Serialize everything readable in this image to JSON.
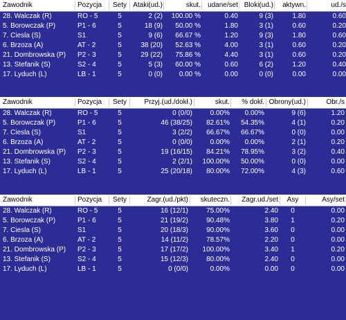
{
  "table1": {
    "headers": [
      "Zawodnik",
      "Pozycja",
      "Sety",
      "Ataki(ud.)",
      "skut.",
      "udane/set",
      "Bloki(ud.)",
      "aktywn.",
      "ud./s"
    ],
    "rows": [
      [
        "28. Walczak (R)",
        "RO - 5",
        "5",
        "2 (2)",
        "100.00 %",
        "0.40",
        "9 (3)",
        "1.80",
        "0.60"
      ],
      [
        "5. Borowczak (P)",
        "P1 - 6",
        "5",
        "18 (9)",
        "50.00 %",
        "1.80",
        "3 (1)",
        "0.60",
        "0.20"
      ],
      [
        "7. Ciesla (S)",
        "S1",
        "5",
        "9 (6)",
        "66.67 %",
        "1.20",
        "9 (3)",
        "1.80",
        "0.60"
      ],
      [
        "6. Brzoza (A)",
        "AT - 2",
        "5",
        "38 (20)",
        "52.63 %",
        "4.00",
        "3 (1)",
        "0.60",
        "0.20"
      ],
      [
        "21. Dombrowska (P)",
        "P2 - 3",
        "5",
        "29 (22)",
        "75.86 %",
        "4.40",
        "3 (1)",
        "0.60",
        "0.20"
      ],
      [
        "13. Stefanik (S)",
        "S2 - 4",
        "5",
        "5 (3)",
        "60.00 %",
        "0.60",
        "6 (2)",
        "1.20",
        "0.40"
      ],
      [
        "17. Lyduch (L)",
        "LB - 1",
        "5",
        "0 (0)",
        "0.00 %",
        "0.00",
        "0 (0)",
        "0.00",
        "0.00"
      ]
    ]
  },
  "table2": {
    "headers": [
      "Zawodnik",
      "Pozycja",
      "Sety",
      "Przyj.(ud./dokł.)",
      "skut.",
      "% dokł.",
      "Obrony(ud.)",
      "Obr./s"
    ],
    "rows": [
      [
        "28. Walczak (R)",
        "RO - 5",
        "5",
        "0 (0/0)",
        "0.00%",
        "0.00%",
        "9 (6)",
        "1.20"
      ],
      [
        "5. Borowczak (P)",
        "P1 - 6",
        "5",
        "46 (38/25)",
        "82.61%",
        "54.35%",
        "4 (1)",
        "0.20"
      ],
      [
        "7. Ciesla (S)",
        "S1",
        "5",
        "3 (2/2)",
        "66.67%",
        "66.67%",
        "0 (0)",
        "0.00"
      ],
      [
        "6. Brzoza (A)",
        "AT - 2",
        "5",
        "0 (0/0)",
        "0.00%",
        "0.00%",
        "2 (1)",
        "0.20"
      ],
      [
        "21. Dombrowska (P)",
        "P2 - 3",
        "5",
        "19 (16/15)",
        "84.21%",
        "78.95%",
        "3 (2)",
        "0.40"
      ],
      [
        "13. Stefanik (S)",
        "S2 - 4",
        "5",
        "2 (2/1)",
        "100.00%",
        "50.00%",
        "0 (0)",
        "0.00"
      ],
      [
        "17. Lyduch (L)",
        "LB - 1",
        "5",
        "25 (20/18)",
        "80.00%",
        "72.00%",
        "4 (3)",
        "0.60"
      ]
    ]
  },
  "table3": {
    "headers": [
      "Zawodnik",
      "Pozycja",
      "Sety",
      "Zagr.(ud./pkt)",
      "skuteczn.",
      "Zagr.ud./set",
      "Asy",
      "Asy/set"
    ],
    "rows": [
      [
        "28. Walczak (R)",
        "RO - 5",
        "5",
        "16 (12/1)",
        "75.00%",
        "2.40",
        "0",
        "0.00"
      ],
      [
        "5. Borowczak (P)",
        "P1 - 6",
        "5",
        "21 (19/2)",
        "90.48%",
        "3.80",
        "1",
        "0.20"
      ],
      [
        "7. Ciesla (S)",
        "S1",
        "5",
        "20 (18/3)",
        "90.00%",
        "3.60",
        "0",
        "0.00"
      ],
      [
        "6. Brzoza (A)",
        "AT - 2",
        "5",
        "14 (11/2)",
        "78.57%",
        "2.20",
        "0",
        "0.00"
      ],
      [
        "21. Dombrowska (P)",
        "P2 - 3",
        "5",
        "17 (17/2)",
        "100.00%",
        "3.40",
        "1",
        "0.20"
      ],
      [
        "13. Stefanik (S)",
        "S2 - 4",
        "5",
        "15 (12/3)",
        "80.00%",
        "2.40",
        "0",
        "0.00"
      ],
      [
        "17. Lyduch (L)",
        "LB - 1",
        "5",
        "0 (0/0)",
        "0.00%",
        "0.00",
        "0",
        "0.00"
      ]
    ]
  },
  "colors": {
    "background": "#2c2c96",
    "header_bg": "#ffffff",
    "text": "#ffffff"
  }
}
